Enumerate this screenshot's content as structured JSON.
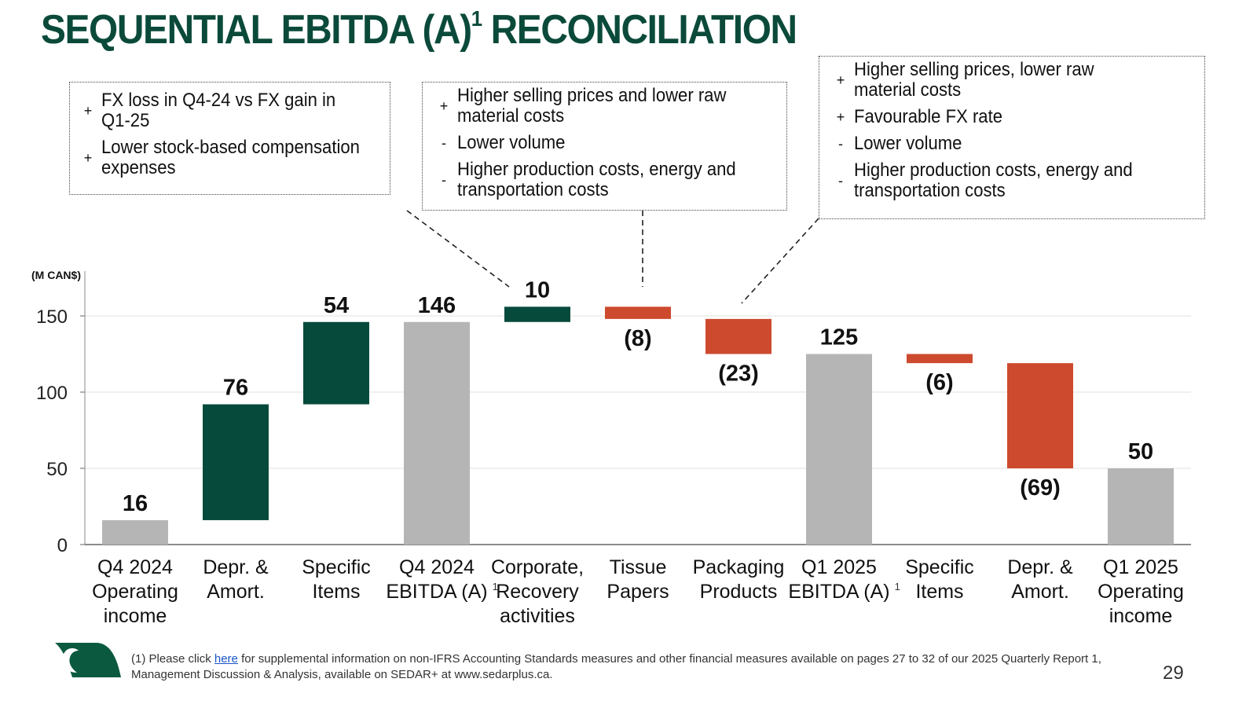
{
  "title": {
    "text": "SEQUENTIAL EBITDA (A)",
    "sup": "1",
    "text2": " RECONCILIATION"
  },
  "callouts": [
    {
      "items": [
        {
          "sign": "+",
          "text": "FX loss in Q4-24 vs FX gain in Q1-25"
        },
        {
          "sign": "+",
          "text": "Lower stock-based compensation expenses"
        }
      ]
    },
    {
      "items": [
        {
          "sign": "+",
          "text": "Higher selling prices and lower raw material costs"
        },
        {
          "sign": "-",
          "text": "Lower volume"
        },
        {
          "sign": "-",
          "text": "Higher production costs, energy and transportation costs"
        }
      ]
    },
    {
      "items": [
        {
          "sign": "+",
          "text": "Higher selling prices, lower raw material costs"
        },
        {
          "sign": "+",
          "text": "Favourable FX rate"
        },
        {
          "sign": "-",
          "text": "Lower volume"
        },
        {
          "sign": "-",
          "text": "Higher production costs, energy and transportation costs"
        }
      ]
    }
  ],
  "chart_data": {
    "type": "bar",
    "subtype": "waterfall",
    "unit_label": "(M CAN$)",
    "ylim": [
      0,
      160
    ],
    "yticks": [
      0,
      50,
      100,
      150
    ],
    "grid": true,
    "colors": {
      "total": "#b5b5b5",
      "increase": "#064a3c",
      "decrease": "#cd4a2e"
    },
    "bars": [
      {
        "category": [
          "Q4 2024",
          "Operating",
          "income"
        ],
        "kind": "total",
        "start": 0,
        "end": 16,
        "label": "16"
      },
      {
        "category": [
          "Depr. &",
          "Amort."
        ],
        "kind": "increase",
        "start": 16,
        "end": 92,
        "label": "76"
      },
      {
        "category": [
          "Specific",
          "Items"
        ],
        "kind": "increase",
        "start": 92,
        "end": 146,
        "label": "54"
      },
      {
        "category": [
          "Q4 2024",
          "EBITDA (A)"
        ],
        "sup": "1",
        "kind": "total",
        "start": 0,
        "end": 146,
        "label": "146"
      },
      {
        "category": [
          "Corporate,",
          "Recovery",
          "activities"
        ],
        "kind": "increase",
        "start": 146,
        "end": 156,
        "label": "10"
      },
      {
        "category": [
          "Tissue",
          "Papers"
        ],
        "kind": "decrease",
        "start": 156,
        "end": 148,
        "label": "(8)"
      },
      {
        "category": [
          "Packaging",
          "Products"
        ],
        "kind": "decrease",
        "start": 148,
        "end": 125,
        "label": "(23)"
      },
      {
        "category": [
          "Q1 2025",
          "EBITDA (A)"
        ],
        "sup": "1",
        "kind": "total",
        "start": 0,
        "end": 125,
        "label": "125"
      },
      {
        "category": [
          "Specific",
          "Items"
        ],
        "kind": "decrease",
        "start": 125,
        "end": 119,
        "label": "(6)"
      },
      {
        "category": [
          "Depr. &",
          "Amort."
        ],
        "kind": "decrease",
        "start": 119,
        "end": 50,
        "label": "(69)"
      },
      {
        "category": [
          "Q1 2025",
          "Operating",
          "income"
        ],
        "kind": "total",
        "start": 0,
        "end": 50,
        "label": "50"
      }
    ]
  },
  "footnote": {
    "prefix": "(1) Please click ",
    "link": "here",
    "suffix": " for supplemental information on non-IFRS Accounting Standards measures and other financial measures available on pages 27 to 32 of our 2025 Quarterly Report 1, Management Discussion & Analysis, available on SEDAR+ at www.sedarplus.ca."
  },
  "page_number": "29"
}
